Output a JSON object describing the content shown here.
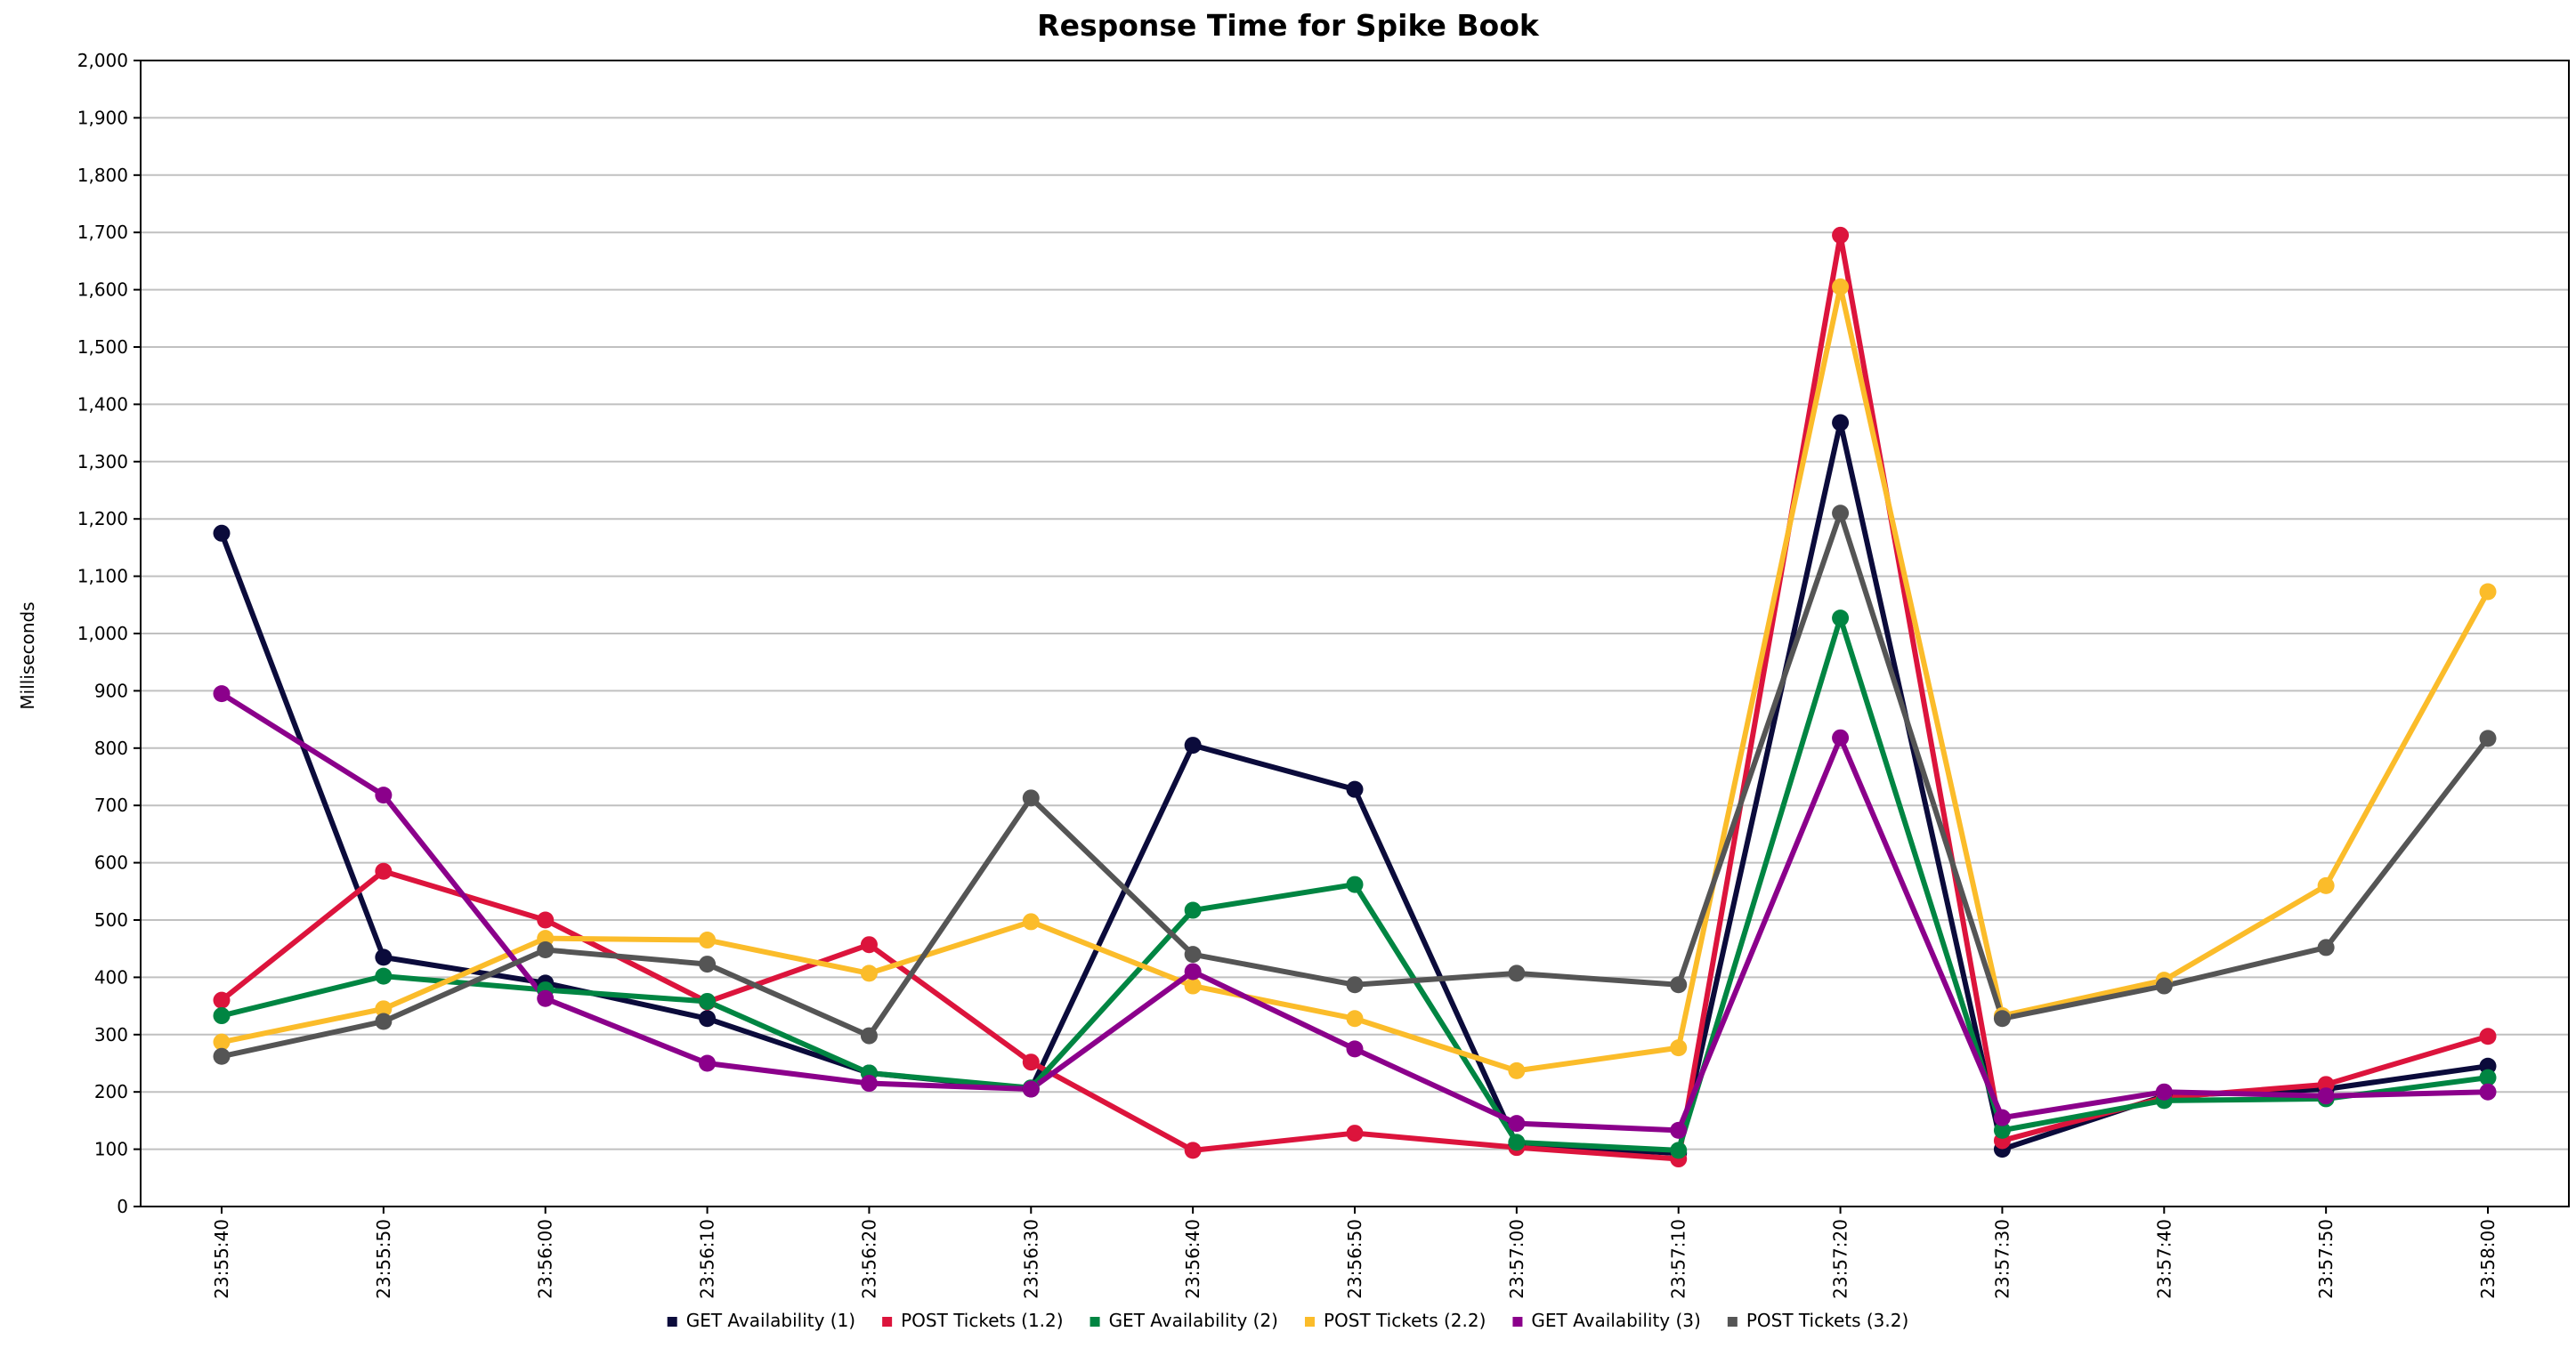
{
  "chart_data": {
    "type": "line",
    "title": "Response Time for Spike Book",
    "xlabel": "",
    "ylabel": "Milliseconds",
    "ylim": [
      0,
      2000
    ],
    "yticks": [
      0,
      100,
      200,
      300,
      400,
      500,
      600,
      700,
      800,
      900,
      1000,
      1100,
      1200,
      1300,
      1400,
      1500,
      1600,
      1700,
      1800,
      1900,
      2000
    ],
    "ytick_labels": [
      "0",
      "100",
      "200",
      "300",
      "400",
      "500",
      "600",
      "700",
      "800",
      "900",
      "1,000",
      "1,100",
      "1,200",
      "1,300",
      "1,400",
      "1,500",
      "1,600",
      "1,700",
      "1,800",
      "1,900",
      "2,000"
    ],
    "grid": true,
    "legend_position": "bottom",
    "x": [
      "23:55:40",
      "23:55:50",
      "23:56:00",
      "23:56:10",
      "23:56:20",
      "23:56:30",
      "23:56:40",
      "23:56:50",
      "23:57:00",
      "23:57:10",
      "23:57:20",
      "23:57:30",
      "23:57:40",
      "23:57:50",
      "23:58:00"
    ],
    "series": [
      {
        "name": "GET Availability (1)",
        "color": "#0b0b3b",
        "values": [
          1175,
          435,
          390,
          328,
          233,
          205,
          805,
          728,
          108,
          93,
          1368,
          100,
          193,
          205,
          245
        ]
      },
      {
        "name": "POST Tickets (1.2)",
        "color": "#dc143c",
        "values": [
          360,
          585,
          500,
          357,
          457,
          252,
          98,
          128,
          103,
          83,
          1695,
          115,
          190,
          213,
          297
        ]
      },
      {
        "name": "GET Availability (2)",
        "color": "#008542",
        "values": [
          333,
          402,
          378,
          358,
          233,
          207,
          517,
          562,
          112,
          98,
          1027,
          133,
          185,
          188,
          225
        ]
      },
      {
        "name": "POST Tickets (2.2)",
        "color": "#fbbc2a",
        "values": [
          287,
          345,
          468,
          465,
          407,
          497,
          385,
          328,
          237,
          277,
          1605,
          333,
          395,
          560,
          1073
        ]
      },
      {
        "name": "GET Availability (3)",
        "color": "#8b008b",
        "values": [
          895,
          718,
          363,
          250,
          215,
          205,
          410,
          275,
          145,
          133,
          818,
          155,
          200,
          193,
          200
        ]
      },
      {
        "name": "POST Tickets (3.2)",
        "color": "#555555",
        "values": [
          262,
          323,
          448,
          423,
          298,
          713,
          440,
          387,
          407,
          387,
          1210,
          328,
          385,
          452,
          817
        ]
      }
    ]
  }
}
